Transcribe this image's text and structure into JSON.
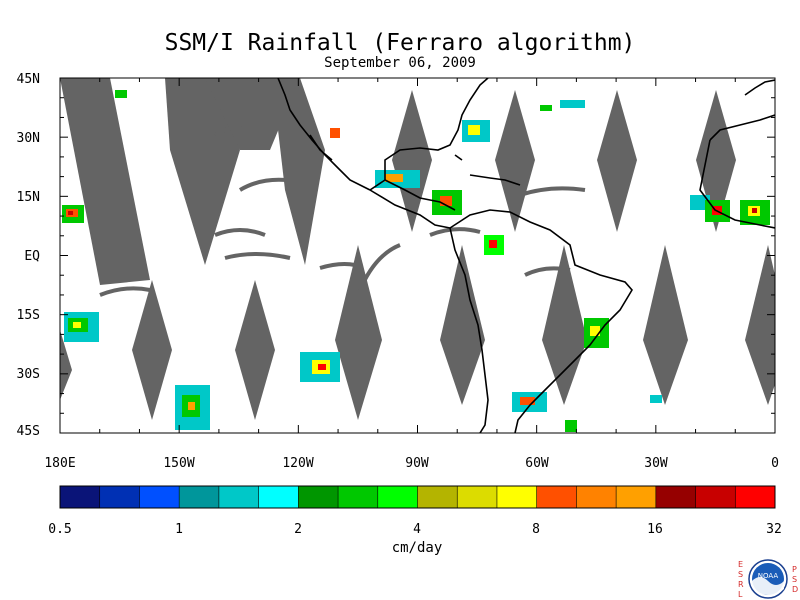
{
  "title": "SSM/I Rainfall (Ferraro algorithm)",
  "date": "September 06, 2009",
  "lat_labels": [
    "45N",
    "30N",
    "15N",
    "EQ",
    "15S",
    "30S",
    "45S"
  ],
  "lat_values": [
    45,
    30,
    15,
    0,
    -15,
    -30,
    -45
  ],
  "lon_labels": [
    "180E",
    "150W",
    "120W",
    "90W",
    "60W",
    "30W",
    "0"
  ],
  "lon_values": [
    -180,
    -150,
    -120,
    -90,
    -60,
    -30,
    0
  ],
  "colorbar": {
    "colors": [
      "#0a1478",
      "#0030b4",
      "#0050ff",
      "#00969b",
      "#00c8c8",
      "#00ffff",
      "#009600",
      "#00c800",
      "#00ff00",
      "#b4b400",
      "#dcdc00",
      "#ffff00",
      "#ff5000",
      "#ff8200",
      "#ffa000",
      "#960000",
      "#c80000",
      "#ff0000"
    ],
    "tick_labels": [
      "0.5",
      "1",
      "2",
      "4",
      "8",
      "16",
      "32"
    ],
    "units": "cm/day"
  },
  "colors": {
    "no_data": "#646464",
    "land": "#000000",
    "background": "#ffffff"
  },
  "logo": {
    "left_letters": [
      "E",
      "S",
      "R",
      "L"
    ],
    "right_letters": [
      "P",
      "S",
      "D"
    ],
    "badge": "NOAA"
  }
}
